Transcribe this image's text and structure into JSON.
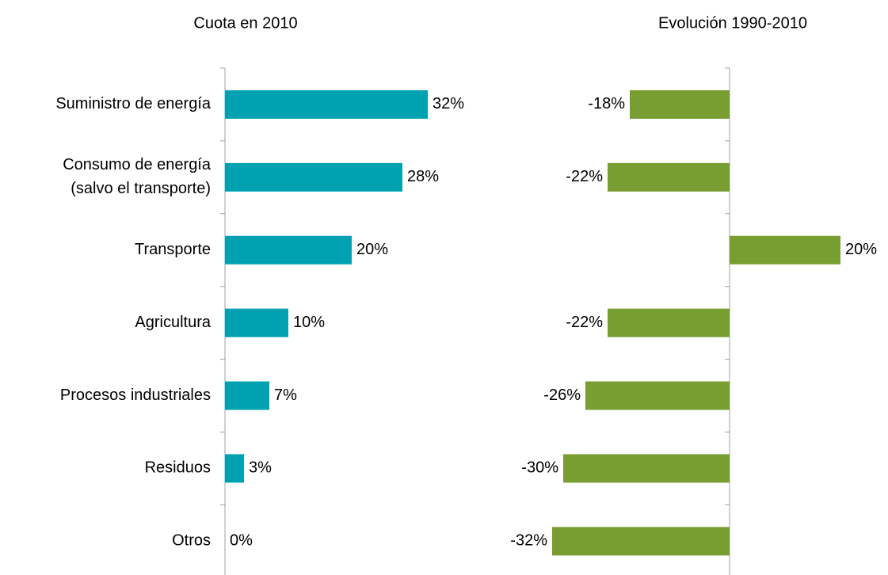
{
  "chart_data": [
    {
      "type": "barh",
      "title": "Cuota en 2010",
      "categories": [
        "Suministro de energía",
        "Consumo de energía\n(salvo el transporte)",
        "Transporte",
        "Agricultura",
        "Procesos industriales",
        "Residuos",
        "Otros"
      ],
      "values": [
        32,
        28,
        20,
        10,
        7,
        3,
        0
      ],
      "value_labels": [
        "32%",
        "28%",
        "20%",
        "10%",
        "7%",
        "3%",
        "0%"
      ],
      "color": "#00a2b2",
      "xlim": [
        0,
        35
      ]
    },
    {
      "type": "barh",
      "title": "Evolución 1990-2010",
      "values": [
        -18,
        -22,
        20,
        -22,
        -26,
        -30,
        -32
      ],
      "value_labels": [
        "-18%",
        "-22%",
        "20%",
        "-22%",
        "-26%",
        "-30%",
        "-32%"
      ],
      "color": "#789d31",
      "xlim": [
        -35,
        25
      ]
    }
  ]
}
